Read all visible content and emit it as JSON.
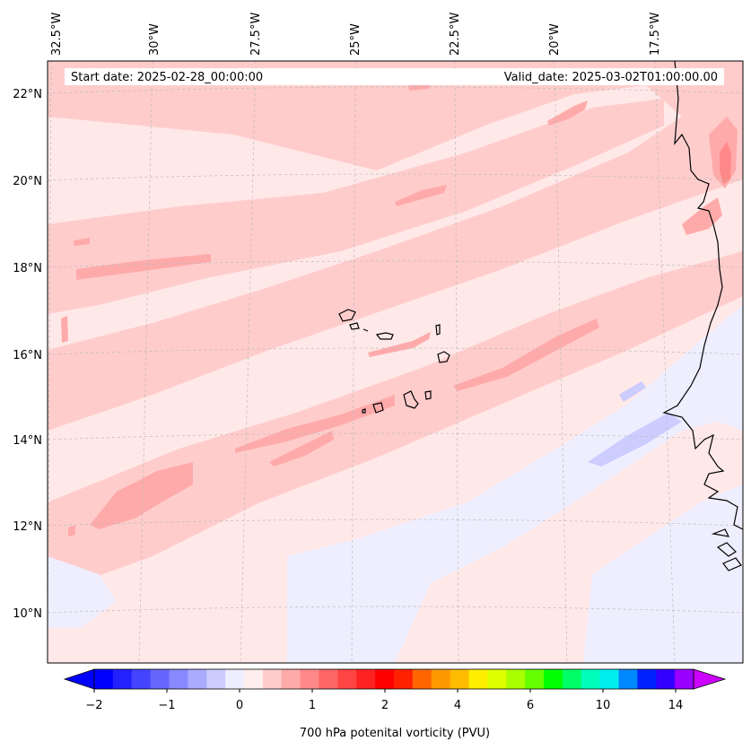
{
  "map": {
    "start_date": "Start date: 2025-02-28_00:00:00",
    "valid_date": "Valid_date: 2025-03-02T01:00:00.00",
    "lon_labels": [
      "32.5°W",
      "30°W",
      "27.5°W",
      "25°W",
      "22.5°W",
      "20°W",
      "17.5°W"
    ],
    "lat_labels": [
      "22°N",
      "20°N",
      "18°N",
      "16°N",
      "14°N",
      "12°N",
      "10°N"
    ]
  },
  "colorbar": {
    "label": "700 hPa potenital vorticity (PVU)",
    "tick_labels": [
      "−2",
      "−1",
      "0",
      "1",
      "2",
      "4",
      "6",
      "10",
      "14"
    ],
    "colors": [
      "#0000ff",
      "#2222ff",
      "#4444ff",
      "#6666ff",
      "#8888ff",
      "#aaaaff",
      "#ccccff",
      "#eeeeff",
      "#ffeeee",
      "#ffcccc",
      "#ffaaaa",
      "#ff8888",
      "#ff6666",
      "#ff4444",
      "#ff2222",
      "#ff0000",
      "#ff2200",
      "#ff6600",
      "#ff9900",
      "#ffbb00",
      "#ffee00",
      "#ddff00",
      "#aaff00",
      "#66ff00",
      "#00ff00",
      "#00ff66",
      "#00ffbb",
      "#00eeee",
      "#0088ff",
      "#0022ff",
      "#3300ff",
      "#9900ff"
    ]
  }
}
